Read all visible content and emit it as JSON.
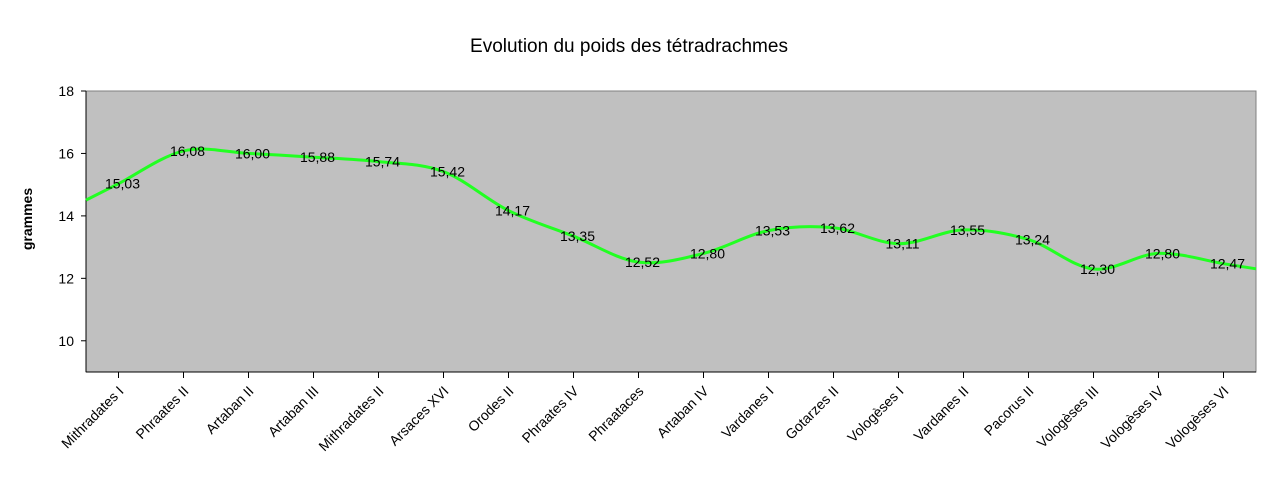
{
  "chart_data": {
    "type": "line",
    "title": "Evolution du poids des tétradrachmes",
    "xlabel": "",
    "ylabel": "grammes",
    "ylim": [
      9,
      18
    ],
    "yticks": [
      10,
      12,
      14,
      16,
      18
    ],
    "grid": false,
    "legend": "none",
    "colors": {
      "line": "#22ff22",
      "plot_bg": "#c0c0c0",
      "axis": "#000000"
    },
    "categories": [
      "Mithradates I",
      "Phraates II",
      "Artaban II",
      "Artaban III",
      "Mithradates II",
      "Arsaces XVI",
      "Orodes II",
      "Phraates IV",
      "Phraataces",
      "Artaban IV",
      "Vardanes I",
      "Gotarzes II",
      "Vologèses I",
      "Vardanes II",
      "Pacorus II",
      "Vologèses III",
      "Vologèses IV",
      "Vologèses VI"
    ],
    "values": [
      15.03,
      16.08,
      16.0,
      15.88,
      15.74,
      15.42,
      14.17,
      13.35,
      12.52,
      12.8,
      13.53,
      13.62,
      13.11,
      13.55,
      13.24,
      12.3,
      12.8,
      12.47
    ],
    "value_labels": [
      "15,03",
      "16,08",
      "16,00",
      "15,88",
      "15,74",
      "15,42",
      "14,17",
      "13,35",
      "12,52",
      "12,80",
      "13,53",
      "13,62",
      "13,11",
      "13,55",
      "13,24",
      "12,30",
      "12,80",
      "12,47"
    ]
  }
}
